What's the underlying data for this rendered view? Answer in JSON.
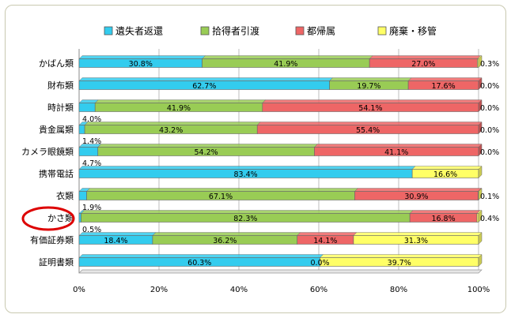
{
  "chart_data": {
    "type": "bar",
    "orientation": "horizontal",
    "stacked": "percent",
    "categories": [
      "かばん類",
      "財布類",
      "時計類",
      "貴金属類",
      "カメラ眼鏡類",
      "携帯電話",
      "衣類",
      "かさ類",
      "有価証券類",
      "証明書類"
    ],
    "series": [
      {
        "name": "遺失者返還",
        "color": "#33ccee",
        "values": [
          30.8,
          62.7,
          4.0,
          1.4,
          4.7,
          83.4,
          1.9,
          0.5,
          18.4,
          60.3
        ]
      },
      {
        "name": "拾得者引渡",
        "color": "#99cc55",
        "values": [
          41.9,
          19.7,
          41.9,
          43.2,
          54.2,
          0.0,
          67.1,
          82.3,
          36.2,
          0.0
        ]
      },
      {
        "name": "都帰属",
        "color": "#ee6666",
        "values": [
          27.0,
          17.6,
          54.1,
          55.4,
          41.1,
          0.0,
          30.9,
          16.8,
          14.1,
          0.0
        ]
      },
      {
        "name": "廃棄・移管",
        "color": "#ffff66",
        "values": [
          0.3,
          0.0,
          0.0,
          0.0,
          0.0,
          16.6,
          0.1,
          0.4,
          31.3,
          39.7
        ]
      }
    ],
    "xlim": [
      0,
      100
    ],
    "x_ticks": [
      "0%",
      "20%",
      "40%",
      "60%",
      "80%",
      "100%"
    ],
    "legend_position": "top",
    "grid": "vertical",
    "annotation": {
      "type": "red-ellipse",
      "category": "かさ類"
    }
  }
}
